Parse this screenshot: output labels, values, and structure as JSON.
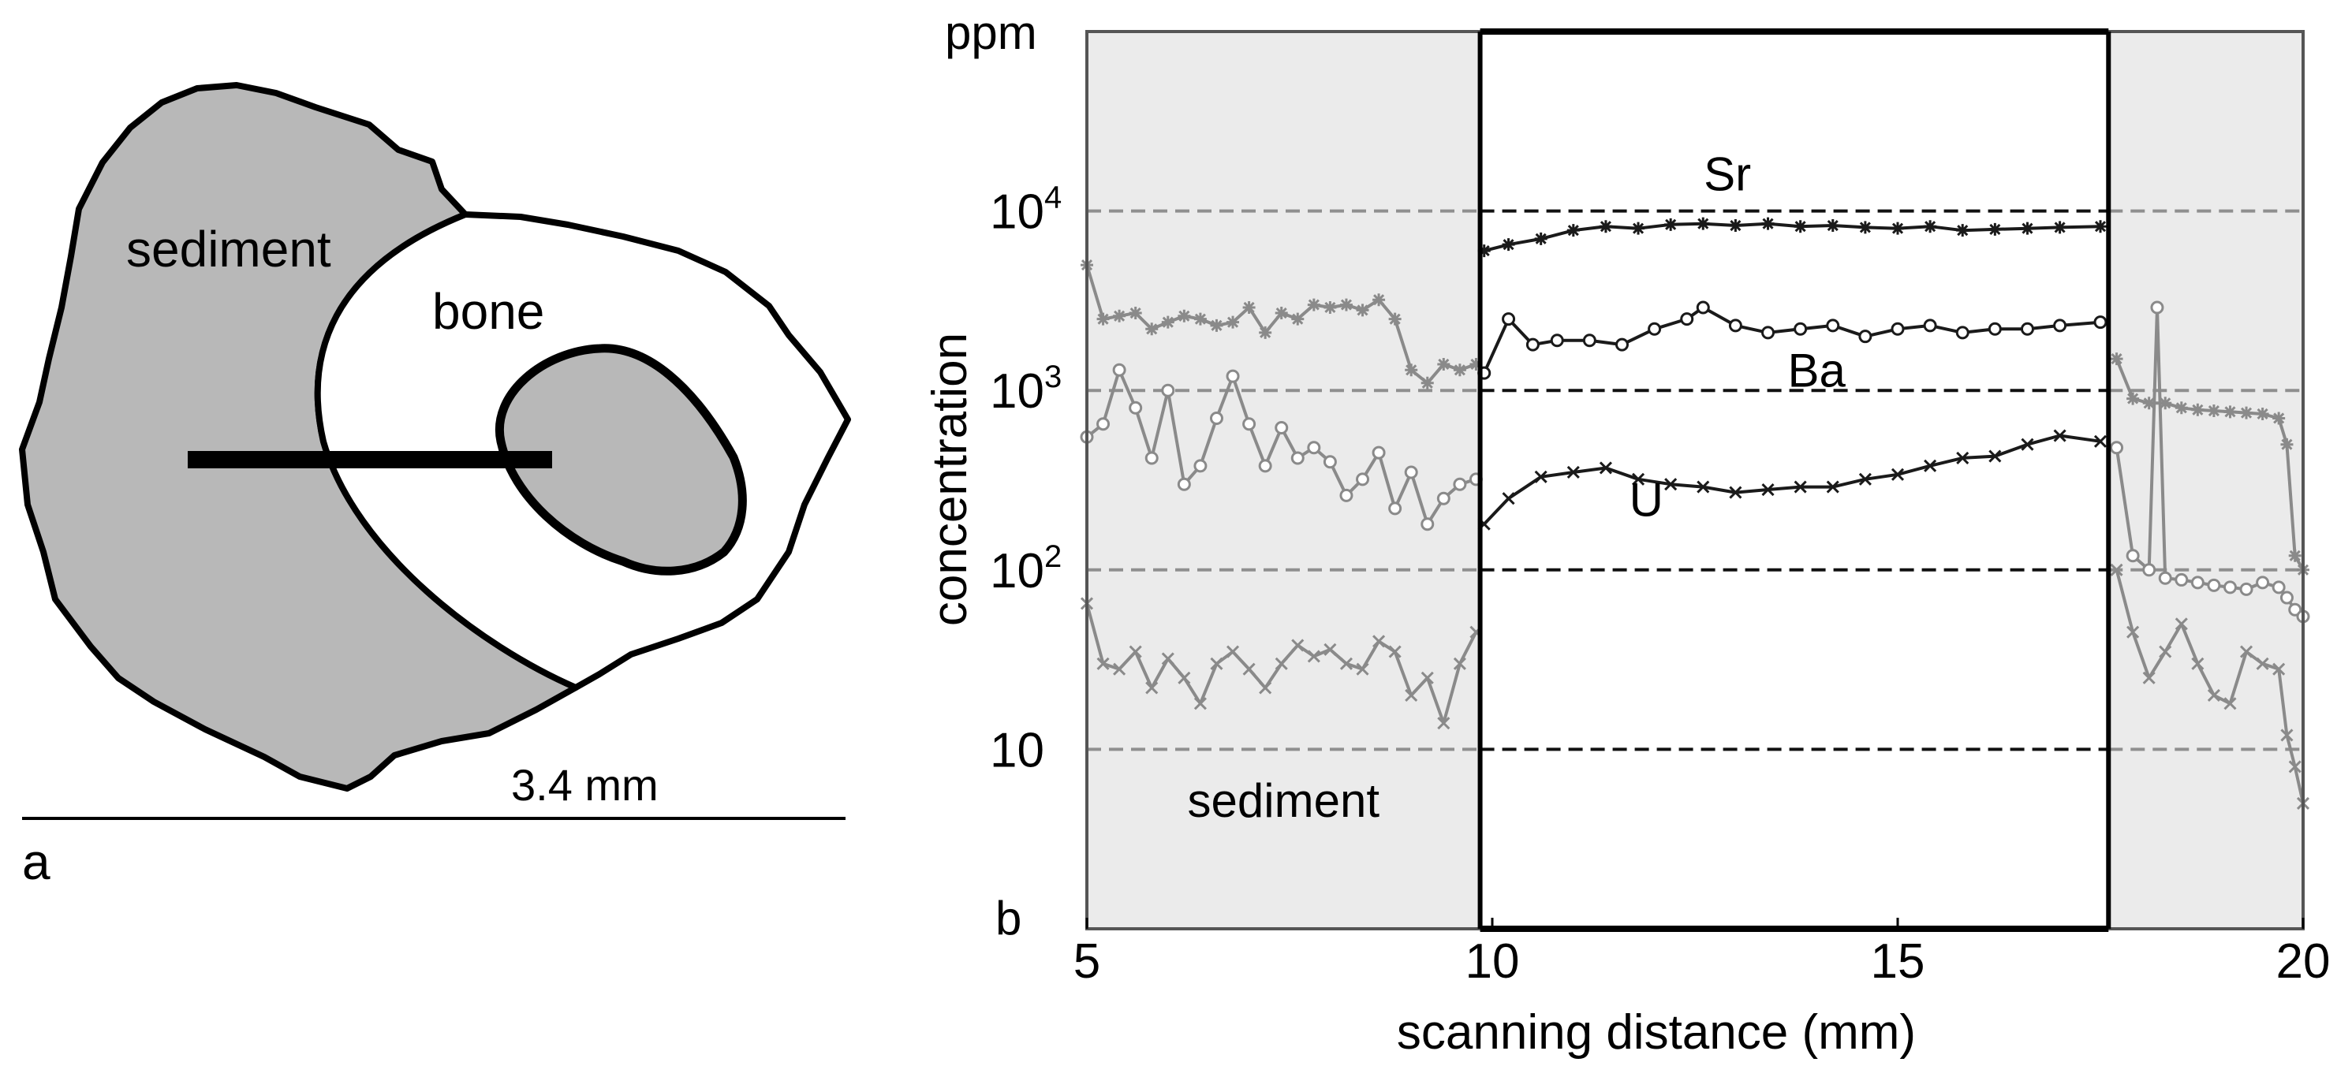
{
  "panel_a": {
    "panel_letter": "a",
    "sediment_label": "sediment",
    "bone_label": "bone",
    "scale_label": "3.4 mm",
    "colors": {
      "sediment_fill": "#b8b8b8",
      "outline": "#000000"
    }
  },
  "chart_data": {
    "type": "line",
    "panel_letter": "b",
    "title": "",
    "xlabel": "scanning distance (mm)",
    "ylabel": "concentration",
    "yunit": "ppm",
    "xlim": [
      5,
      20
    ],
    "ylim_log10": [
      0,
      5
    ],
    "yscale": "log",
    "xticks": [
      5,
      10,
      15,
      20
    ],
    "xtick_labels": [
      "5",
      "10",
      "15",
      "20"
    ],
    "yticks": [
      10,
      100,
      1000,
      10000
    ],
    "ytick_labels": [
      {
        "base": "10",
        "exp": ""
      },
      {
        "base": "10",
        "exp": "2"
      },
      {
        "base": "10",
        "exp": "3"
      },
      {
        "base": "10",
        "exp": "4"
      }
    ],
    "gridlines": [
      10,
      100,
      1000,
      10000
    ],
    "regions": [
      {
        "name": "sediment",
        "x0": 5,
        "x1": 9.85,
        "label": "sediment"
      },
      {
        "name": "bone",
        "x0": 9.85,
        "x1": 17.6,
        "label": ""
      },
      {
        "name": "sediment",
        "x0": 17.6,
        "x1": 20,
        "label": ""
      }
    ],
    "annotations": [
      {
        "text": "Sr",
        "x": 12.9,
        "y": 13000
      },
      {
        "text": "Ba",
        "x": 14.0,
        "y": 1050
      },
      {
        "text": "U",
        "x": 11.9,
        "y": 200
      }
    ],
    "series": [
      {
        "name": "Sr",
        "marker": "star",
        "x": [
          5.0,
          5.2,
          5.4,
          5.6,
          5.8,
          6.0,
          6.2,
          6.4,
          6.6,
          6.8,
          7.0,
          7.2,
          7.4,
          7.6,
          7.8,
          8.0,
          8.2,
          8.4,
          8.6,
          8.8,
          9.0,
          9.2,
          9.4,
          9.6,
          9.8,
          9.9,
          10.2,
          10.6,
          11.0,
          11.4,
          11.8,
          12.2,
          12.6,
          13.0,
          13.4,
          13.8,
          14.2,
          14.6,
          15.0,
          15.4,
          15.8,
          16.2,
          16.6,
          17.0,
          17.5,
          17.7,
          17.9,
          18.1,
          18.3,
          18.5,
          18.7,
          18.9,
          19.1,
          19.3,
          19.5,
          19.7,
          19.8,
          19.9,
          20.0
        ],
        "y": [
          5000,
          2500,
          2600,
          2700,
          2200,
          2400,
          2600,
          2500,
          2300,
          2400,
          2900,
          2100,
          2700,
          2500,
          3000,
          2900,
          3000,
          2800,
          3200,
          2500,
          1300,
          1100,
          1400,
          1300,
          1400,
          6000,
          6500,
          7000,
          7800,
          8200,
          8000,
          8400,
          8500,
          8300,
          8500,
          8200,
          8300,
          8100,
          8000,
          8200,
          7800,
          7900,
          8000,
          8100,
          8200,
          1500,
          900,
          850,
          850,
          800,
          780,
          770,
          760,
          750,
          740,
          700,
          500,
          120,
          100
        ]
      },
      {
        "name": "Ba",
        "marker": "circle",
        "x": [
          5.0,
          5.2,
          5.4,
          5.6,
          5.8,
          6.0,
          6.2,
          6.4,
          6.6,
          6.8,
          7.0,
          7.2,
          7.4,
          7.6,
          7.8,
          8.0,
          8.2,
          8.4,
          8.6,
          8.8,
          9.0,
          9.2,
          9.4,
          9.6,
          9.8,
          9.9,
          10.2,
          10.5,
          10.8,
          11.2,
          11.6,
          12.0,
          12.4,
          12.6,
          13.0,
          13.4,
          13.8,
          14.2,
          14.6,
          15.0,
          15.4,
          15.8,
          16.2,
          16.6,
          17.0,
          17.5,
          17.7,
          17.9,
          18.1,
          18.2,
          18.3,
          18.5,
          18.7,
          18.9,
          19.1,
          19.3,
          19.5,
          19.7,
          19.8,
          19.9,
          20.0
        ],
        "y": [
          550,
          650,
          1300,
          800,
          420,
          1000,
          300,
          380,
          700,
          1200,
          650,
          380,
          620,
          420,
          480,
          400,
          260,
          320,
          450,
          220,
          350,
          180,
          250,
          300,
          320,
          1250,
          2500,
          1800,
          1900,
          1900,
          1800,
          2200,
          2500,
          2900,
          2300,
          2100,
          2200,
          2300,
          2000,
          2200,
          2300,
          2100,
          2200,
          2200,
          2300,
          2400,
          480,
          120,
          100,
          2900,
          90,
          88,
          85,
          82,
          80,
          78,
          85,
          80,
          70,
          60,
          55
        ]
      },
      {
        "name": "U",
        "marker": "x",
        "x": [
          5.0,
          5.2,
          5.4,
          5.6,
          5.8,
          6.0,
          6.2,
          6.4,
          6.6,
          6.8,
          7.0,
          7.2,
          7.4,
          7.6,
          7.8,
          8.0,
          8.2,
          8.4,
          8.6,
          8.8,
          9.0,
          9.2,
          9.4,
          9.6,
          9.8,
          9.9,
          10.2,
          10.6,
          11.0,
          11.4,
          11.8,
          12.2,
          12.6,
          13.0,
          13.4,
          13.8,
          14.2,
          14.6,
          15.0,
          15.4,
          15.8,
          16.2,
          16.6,
          17.0,
          17.5,
          17.7,
          17.9,
          18.1,
          18.3,
          18.5,
          18.7,
          18.9,
          19.1,
          19.3,
          19.5,
          19.7,
          19.8,
          19.9,
          20.0
        ],
        "y": [
          65,
          30,
          28,
          35,
          22,
          32,
          25,
          18,
          30,
          35,
          28,
          22,
          30,
          38,
          33,
          36,
          30,
          28,
          40,
          35,
          20,
          25,
          14,
          30,
          45,
          180,
          250,
          330,
          350,
          370,
          320,
          300,
          290,
          270,
          280,
          290,
          290,
          320,
          340,
          380,
          420,
          430,
          500,
          560,
          520,
          100,
          45,
          25,
          35,
          50,
          30,
          20,
          18,
          35,
          30,
          28,
          12,
          8,
          5
        ]
      }
    ],
    "colors": {
      "sediment_shade": "#ebebeb",
      "bone_series": "#1a1a1a",
      "sediment_series": "#8a8a8a",
      "grid_bone": "#111111",
      "grid_sediment": "#8f8f8f"
    }
  }
}
